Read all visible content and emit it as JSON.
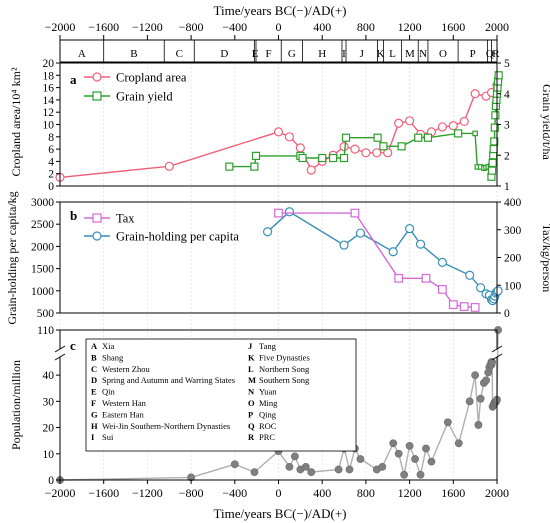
{
  "x_axis": {
    "title": "Time/years BC(−)/AD(+)",
    "ticks": [
      -2000,
      -1600,
      -1200,
      -800,
      -400,
      0,
      400,
      800,
      1200,
      1600,
      2000
    ],
    "tick_labels": [
      "−2000",
      "−1600",
      "−1200",
      "−800",
      "−400",
      "0",
      "400",
      "800",
      "1200",
      "1600",
      "2000"
    ],
    "range": [
      -2000,
      2000
    ]
  },
  "dynasty_bar": {
    "letters": [
      {
        "letter": "A",
        "from": -2000,
        "to": -1600
      },
      {
        "letter": "B",
        "from": -1600,
        "to": -1046
      },
      {
        "letter": "C",
        "from": -1046,
        "to": -771
      },
      {
        "letter": "D",
        "from": -771,
        "to": -221
      },
      {
        "letter": "E",
        "from": -221,
        "to": -206
      },
      {
        "letter": "F",
        "from": -206,
        "to": 25
      },
      {
        "letter": "G",
        "from": 25,
        "to": 220
      },
      {
        "letter": "H",
        "from": 220,
        "to": 581
      },
      {
        "letter": "I",
        "from": 581,
        "to": 618
      },
      {
        "letter": "J",
        "from": 618,
        "to": 907
      },
      {
        "letter": "K",
        "from": 907,
        "to": 960
      },
      {
        "letter": "L",
        "from": 960,
        "to": 1127
      },
      {
        "letter": "M",
        "from": 1127,
        "to": 1279
      },
      {
        "letter": "N",
        "from": 1279,
        "to": 1368
      },
      {
        "letter": "O",
        "from": 1368,
        "to": 1644
      },
      {
        "letter": "P",
        "from": 1644,
        "to": 1912
      },
      {
        "letter": "Q",
        "from": 1912,
        "to": 1949
      },
      {
        "letter": "R",
        "from": 1949,
        "to": 2020
      }
    ]
  },
  "chart_data": [
    {
      "panel": "a",
      "type": "line",
      "y_left": {
        "label": "Cropland area/10⁴ km²",
        "ticks": [
          0,
          2,
          4,
          6,
          8,
          10,
          12,
          14,
          16,
          18,
          20
        ],
        "range": [
          0,
          20
        ]
      },
      "y_right": {
        "label": "Grain yield/t/ha",
        "ticks": [
          1,
          2,
          3,
          4,
          5
        ],
        "range": [
          1,
          5
        ]
      },
      "legend_position": "top-left",
      "series": [
        {
          "name": "Cropland area",
          "axis": "left",
          "color": "#f0607a",
          "marker": "circle",
          "x": [
            -2000,
            -1000,
            0,
            100,
            200,
            300,
            400,
            500,
            600,
            700,
            800,
            900,
            1000,
            1100,
            1200,
            1300,
            1400,
            1500,
            1600,
            1700,
            1800,
            1900,
            1950,
            2000
          ],
          "y": [
            1.4,
            3.2,
            8.8,
            8.0,
            6.2,
            2.6,
            4.0,
            5.0,
            6.4,
            6.0,
            5.4,
            5.4,
            5.4,
            10.2,
            10.6,
            8.4,
            8.8,
            9.6,
            9.8,
            10.5,
            15.0,
            14.6,
            15.2,
            16.4
          ]
        },
        {
          "name": "Grain yield",
          "axis": "right",
          "color": "#2ca02c",
          "marker": "square",
          "x": [
            -450,
            -221,
            -206,
            200,
            220,
            400,
            500,
            600,
            618,
            907,
            960,
            1127,
            1279,
            1368,
            1644,
            1800,
            1820,
            1850,
            1880,
            1900,
            1920,
            1940,
            1949,
            1955,
            1960,
            1965,
            1970,
            1975,
            1980,
            1985,
            1990,
            1995,
            2000,
            2005,
            2010,
            2015
          ],
          "y": [
            1.63,
            1.63,
            1.98,
            1.98,
            1.91,
            1.91,
            1.91,
            1.91,
            2.57,
            2.57,
            2.29,
            2.29,
            2.57,
            2.57,
            2.71,
            2.71,
            1.62,
            1.62,
            1.58,
            1.6,
            1.62,
            1.65,
            1.3,
            1.5,
            1.75,
            2.0,
            2.2,
            2.45,
            2.9,
            3.3,
            3.6,
            3.8,
            4.0,
            4.2,
            4.4,
            4.6
          ]
        }
      ]
    },
    {
      "panel": "b",
      "type": "line",
      "y_left": {
        "label": "Grain-holding per capita/kg",
        "ticks": [
          500,
          1000,
          1500,
          2000,
          2500,
          3000
        ],
        "range": [
          500,
          3000
        ]
      },
      "y_right": {
        "label": "Tax/kg/person",
        "ticks": [
          0,
          100,
          200,
          300,
          400
        ],
        "range": [
          0,
          400
        ]
      },
      "legend_position": "top-left",
      "series": [
        {
          "name": "Tax",
          "axis": "right",
          "color": "#d36bd9",
          "marker": "square",
          "x": [
            0,
            700,
            1100,
            1350,
            1500,
            1600,
            1700,
            1800
          ],
          "y": [
            360,
            360,
            125,
            125,
            85,
            30,
            23,
            20
          ]
        },
        {
          "name": "Grain-holding per capita",
          "axis": "left",
          "color": "#3a8fb7",
          "marker": "circle",
          "x": [
            -100,
            100,
            600,
            750,
            1050,
            1200,
            1300,
            1500,
            1750,
            1850,
            1900,
            1930,
            1950,
            1960,
            1970,
            1980,
            1990,
            2000,
            2010
          ],
          "y": [
            2330,
            2780,
            2030,
            2300,
            1880,
            2400,
            2050,
            1640,
            1350,
            1070,
            930,
            900,
            800,
            780,
            820,
            880,
            950,
            980,
            1000
          ]
        }
      ]
    },
    {
      "panel": "c",
      "type": "scatter",
      "y_left": {
        "label": "Population/million",
        "ticks": [
          0,
          10,
          20,
          30,
          40
        ],
        "range": [
          0,
          45
        ],
        "break": [
          45,
          105
        ],
        "top_tick": 110
      },
      "color": "#7f7f7f",
      "series": [
        {
          "name": "",
          "x": [
            -2000,
            -800,
            -400,
            -220,
            0,
            100,
            150,
            200,
            250,
            300,
            550,
            600,
            650,
            700,
            750,
            900,
            950,
            1050,
            1100,
            1150,
            1200,
            1250,
            1300,
            1350,
            1400,
            1550,
            1650,
            1750,
            1800,
            1830,
            1850,
            1880,
            1900,
            1920,
            1930,
            1940,
            1949,
            1950,
            1955,
            1960,
            1965,
            1970,
            1975,
            1980,
            1985,
            1990,
            1995,
            2000,
            2010
          ],
          "y": [
            0,
            1,
            6,
            3,
            11,
            5,
            9,
            4,
            5,
            3,
            4,
            12,
            4,
            12,
            8,
            4,
            5,
            14,
            10,
            2,
            13,
            8,
            2,
            12,
            7,
            22,
            14,
            30,
            40,
            21,
            31,
            37,
            38,
            41,
            43,
            44,
            45,
            44,
            45,
            46,
            47,
            48,
            49,
            50,
            50,
            50,
            51,
            52,
            110
          ]
        }
      ],
      "legend": [
        {
          "code": "A",
          "name": "Xia"
        },
        {
          "code": "B",
          "name": "Shang"
        },
        {
          "code": "C",
          "name": "Western Zhou"
        },
        {
          "code": "D",
          "name": "Spring and Autumn and Warring States"
        },
        {
          "code": "E",
          "name": "Qin"
        },
        {
          "code": "F",
          "name": "Western Han"
        },
        {
          "code": "G",
          "name": "Eastern Han"
        },
        {
          "code": "H",
          "name": "Wei-Jin Southern-Northern Dynasties"
        },
        {
          "code": "I",
          "name": "Sui"
        },
        {
          "code": "J",
          "name": "Tang"
        },
        {
          "code": "K",
          "name": "Five Dynasties"
        },
        {
          "code": "L",
          "name": "Northern Song"
        },
        {
          "code": "M",
          "name": "Southern Song"
        },
        {
          "code": "N",
          "name": "Yuan"
        },
        {
          "code": "O",
          "name": "Ming"
        },
        {
          "code": "P",
          "name": "Qing"
        },
        {
          "code": "Q",
          "name": "ROC"
        },
        {
          "code": "R",
          "name": "PRC"
        }
      ]
    }
  ]
}
